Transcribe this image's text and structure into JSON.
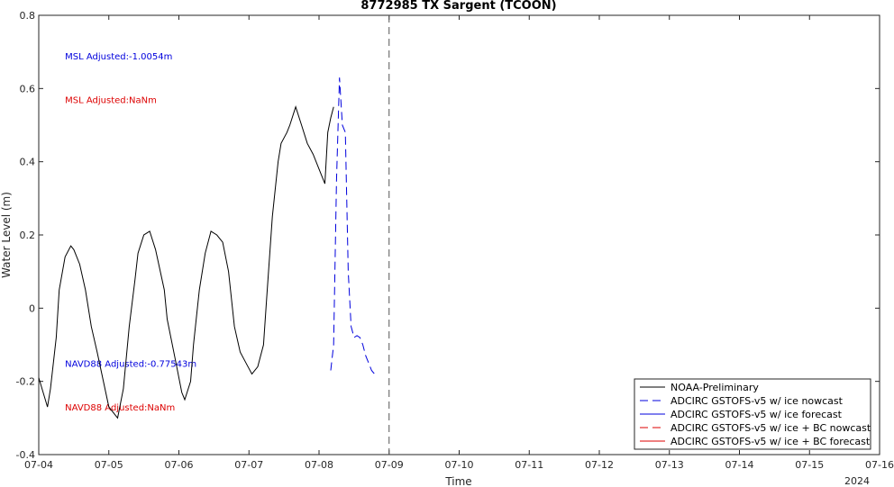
{
  "chart_data": {
    "type": "line",
    "title": "8772985 TX Sargent (TCOON)",
    "xlabel": "Time",
    "ylabel": "Water Level (m)",
    "year_label": "2024",
    "ylim": [
      -0.4,
      0.8
    ],
    "y_ticks": [
      -0.4,
      -0.2,
      0,
      0.2,
      0.4,
      0.6,
      0.8
    ],
    "y_tick_labels": [
      "-0.4",
      "-0.2",
      "0",
      "0.2",
      "0.4",
      "0.6",
      "0.8"
    ],
    "x_ticks": [
      "2024-07-04",
      "2024-07-05",
      "2024-07-06",
      "2024-07-07",
      "2024-07-08",
      "2024-07-09",
      "2024-07-10",
      "2024-07-11",
      "2024-07-12",
      "2024-07-13",
      "2024-07-14",
      "2024-07-15",
      "2024-07-16"
    ],
    "x_tick_labels": [
      "07-04",
      "07-05",
      "07-06",
      "07-07",
      "07-08",
      "07-09",
      "07-10",
      "07-11",
      "07-12",
      "07-13",
      "07-14",
      "07-15",
      "07-16"
    ],
    "xlim": [
      "2024-07-04 00:00",
      "2024-07-16 00:00"
    ],
    "nowcast_line": "2024-07-09 00:00",
    "grid": false,
    "legend_position": "bottom-right",
    "annotations": [
      {
        "text": "MSL Adjusted:-1.0054m",
        "color": "#0000dd",
        "x": "2024-07-04 09:00",
        "y": 0.68
      },
      {
        "text": "MSL Adjusted:NaNm",
        "color": "#dd0000",
        "x": "2024-07-04 09:00",
        "y": 0.56
      },
      {
        "text": "NAVD88 Adjusted:-0.77543m",
        "color": "#0000dd",
        "x": "2024-07-04 09:00",
        "y": -0.16
      },
      {
        "text": "NAVD88 Adjusted:NaNm",
        "color": "#dd0000",
        "x": "2024-07-04 09:00",
        "y": -0.28
      }
    ],
    "series": [
      {
        "name": "NOAA-Preliminary",
        "color": "#000000",
        "dash": "solid",
        "x": [
          "2024-07-04 00:00",
          "2024-07-04 03:00",
          "2024-07-04 04:00",
          "2024-07-04 06:00",
          "2024-07-04 07:00",
          "2024-07-04 09:00",
          "2024-07-04 11:00",
          "2024-07-04 12:00",
          "2024-07-04 14:00",
          "2024-07-04 16:00",
          "2024-07-04 18:00",
          "2024-07-04 20:00",
          "2024-07-05 00:00",
          "2024-07-05 03:00",
          "2024-07-05 05:00",
          "2024-07-05 07:00",
          "2024-07-05 09:00",
          "2024-07-05 10:00",
          "2024-07-05 12:00",
          "2024-07-05 14:00",
          "2024-07-05 16:00",
          "2024-07-05 19:00",
          "2024-07-05 20:00",
          "2024-07-05 23:00",
          "2024-07-06 01:00",
          "2024-07-06 02:00",
          "2024-07-06 04:00",
          "2024-07-06 05:00",
          "2024-07-06 07:00",
          "2024-07-06 09:00",
          "2024-07-06 11:00",
          "2024-07-06 13:00",
          "2024-07-06 15:00",
          "2024-07-06 17:00",
          "2024-07-06 19:00",
          "2024-07-06 21:00",
          "2024-07-06 23:00",
          "2024-07-07 01:00",
          "2024-07-07 03:00",
          "2024-07-07 05:00",
          "2024-07-07 06:00",
          "2024-07-07 08:00",
          "2024-07-07 10:00",
          "2024-07-07 11:00",
          "2024-07-07 13:00",
          "2024-07-07 14:00",
          "2024-07-07 16:00",
          "2024-07-07 18:00",
          "2024-07-07 20:00",
          "2024-07-07 22:00",
          "2024-07-08 00:00",
          "2024-07-08 02:00",
          "2024-07-08 03:00",
          "2024-07-08 04:00",
          "2024-07-08 05:00"
        ],
        "y": [
          -0.19,
          -0.27,
          -0.22,
          -0.08,
          0.05,
          0.14,
          0.17,
          0.16,
          0.12,
          0.05,
          -0.05,
          -0.12,
          -0.27,
          -0.3,
          -0.22,
          -0.05,
          0.08,
          0.15,
          0.2,
          0.21,
          0.16,
          0.05,
          -0.03,
          -0.15,
          -0.23,
          -0.25,
          -0.2,
          -0.1,
          0.05,
          0.15,
          0.21,
          0.2,
          0.18,
          0.1,
          -0.05,
          -0.12,
          -0.15,
          -0.18,
          -0.16,
          -0.1,
          0.02,
          0.25,
          0.4,
          0.45,
          0.48,
          0.5,
          0.55,
          0.5,
          0.45,
          0.42,
          0.38,
          0.34,
          0.48,
          0.52,
          0.55
        ]
      },
      {
        "name": "ADCIRC GSTOFS-v5 w/ ice nowcast",
        "color": "#0000dd",
        "dash": "dashed",
        "x": [
          "2024-07-08 04:00",
          "2024-07-08 05:00",
          "2024-07-08 06:00",
          "2024-07-08 07:00",
          "2024-07-08 08:00",
          "2024-07-08 09:00",
          "2024-07-08 10:00",
          "2024-07-08 11:00",
          "2024-07-08 12:00",
          "2024-07-08 13:00",
          "2024-07-08 14:00",
          "2024-07-08 15:00",
          "2024-07-08 16:00",
          "2024-07-08 17:00",
          "2024-07-08 18:00",
          "2024-07-08 19:00",
          "2024-07-08 20:00"
        ],
        "y": [
          -0.17,
          -0.1,
          0.35,
          0.63,
          0.5,
          0.48,
          0.1,
          -0.05,
          -0.08,
          -0.075,
          -0.08,
          -0.1,
          -0.13,
          -0.15,
          -0.17,
          -0.18,
          -0.185
        ]
      },
      {
        "name": "ADCIRC GSTOFS-v5 w/ ice forecast",
        "color": "#0000dd",
        "dash": "solid",
        "x": [],
        "y": []
      },
      {
        "name": "ADCIRC GSTOFS-v5 w/ ice + BC nowcast",
        "color": "#dd0000",
        "dash": "dashed",
        "x": [],
        "y": []
      },
      {
        "name": "ADCIRC GSTOFS-v5 w/ ice + BC forecast",
        "color": "#dd0000",
        "dash": "solid",
        "x": [],
        "y": []
      }
    ]
  }
}
